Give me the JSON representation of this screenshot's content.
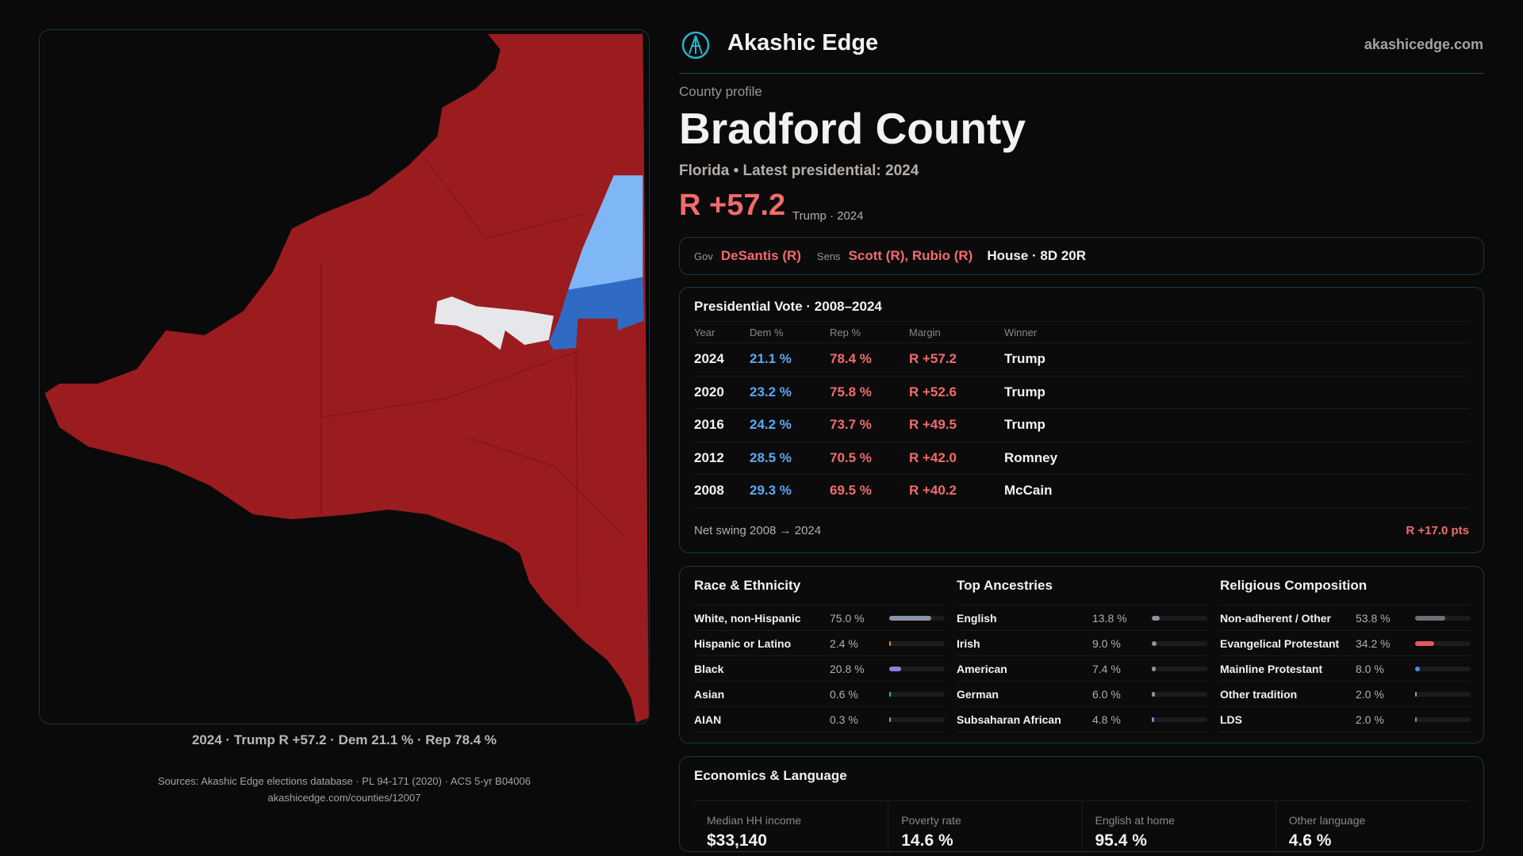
{
  "brand": {
    "name": "Akashic Edge",
    "domain": "akashicedge.com",
    "logo_icon": "compass-emblem-icon"
  },
  "profile": {
    "eyebrow": "County profile",
    "title": "Bradford County",
    "subtitle": "Florida • Latest presidential: 2024",
    "margin": "R +57.2",
    "margin_note": "Trump · 2024"
  },
  "officials": {
    "gov_label": "Gov",
    "gov": "DeSantis (R)",
    "sens_label": "Sens",
    "sens": "Scott (R), Rubio (R)",
    "house": "House · 8D 20R"
  },
  "map": {
    "caption": "2024 · Trump R +57.2 · Dem 21.1 % · Rep 78.4 %",
    "colors": {
      "rep": "#9b1c1f",
      "dem_light": "#7fb6f5",
      "dem": "#2f6bc5",
      "tossup": "#e6e7ea"
    }
  },
  "presidential": {
    "title": "Presidential Vote · 2008–2024",
    "headers": [
      "Year",
      "Dem %",
      "Rep %",
      "Margin",
      "Winner"
    ],
    "rows": [
      {
        "year": "2024",
        "dem": "21.1 %",
        "rep": "78.4 %",
        "margin": "R +57.2",
        "winner": "Trump"
      },
      {
        "year": "2020",
        "dem": "23.2 %",
        "rep": "75.8 %",
        "margin": "R +52.6",
        "winner": "Trump"
      },
      {
        "year": "2016",
        "dem": "24.2 %",
        "rep": "73.7 %",
        "margin": "R +49.5",
        "winner": "Trump"
      },
      {
        "year": "2012",
        "dem": "28.5 %",
        "rep": "70.5 %",
        "margin": "R +42.0",
        "winner": "Romney"
      },
      {
        "year": "2008",
        "dem": "29.3 %",
        "rep": "69.5 %",
        "margin": "R +40.2",
        "winner": "McCain"
      }
    ],
    "swing_label": "Net swing 2008 → 2024",
    "swing_value": "R +17.0 pts"
  },
  "demographics": [
    {
      "title": "Race & Ethnicity",
      "rows": [
        {
          "label": "White, non-Hispanic",
          "value": "75.0 %",
          "pct": 75.0,
          "color": "#8a93a6"
        },
        {
          "label": "Hispanic or Latino",
          "value": "2.4 %",
          "pct": 2.4,
          "color": "#e08a2a"
        },
        {
          "label": "Black",
          "value": "20.8 %",
          "pct": 20.8,
          "color": "#9a7ae0"
        },
        {
          "label": "Asian",
          "value": "0.6 %",
          "pct": 0.6,
          "color": "#2bbf8a"
        },
        {
          "label": "AIAN",
          "value": "0.3 %",
          "pct": 0.3,
          "color": "#e08a2a"
        }
      ]
    },
    {
      "title": "Top Ancestries",
      "rows": [
        {
          "label": "English",
          "value": "13.8 %",
          "pct": 13.8,
          "color": "#8a93a6"
        },
        {
          "label": "Irish",
          "value": "9.0 %",
          "pct": 9.0,
          "color": "#8a93a6"
        },
        {
          "label": "American",
          "value": "7.4 %",
          "pct": 7.4,
          "color": "#8a93a6"
        },
        {
          "label": "German",
          "value": "6.0 %",
          "pct": 6.0,
          "color": "#8a93a6"
        },
        {
          "label": "Subsaharan African",
          "value": "4.8 %",
          "pct": 4.8,
          "color": "#9a7ae0"
        }
      ]
    },
    {
      "title": "Religious Composition",
      "rows": [
        {
          "label": "Non-adherent / Other",
          "value": "53.8 %",
          "pct": 53.8,
          "color": "#6b6f78"
        },
        {
          "label": "Evangelical Protestant",
          "value": "34.2 %",
          "pct": 34.2,
          "color": "#e05a5f"
        },
        {
          "label": "Mainline Protestant",
          "value": "8.0 %",
          "pct": 8.0,
          "color": "#4a8fe0"
        },
        {
          "label": "Other tradition",
          "value": "2.0 %",
          "pct": 2.0,
          "color": "#9a9a9a"
        },
        {
          "label": "LDS",
          "value": "2.0 %",
          "pct": 2.0,
          "color": "#2bbfa8"
        }
      ]
    }
  ],
  "economics": {
    "title": "Economics & Language",
    "items": [
      {
        "label": "Median HH income",
        "value": "$33,140"
      },
      {
        "label": "Poverty rate",
        "value": "14.6 %"
      },
      {
        "label": "English at home",
        "value": "95.4 %"
      },
      {
        "label": "Other language",
        "value": "4.6 %"
      }
    ]
  },
  "sources": {
    "line1": "Sources: Akashic Edge elections database · PL 94-171 (2020) · ACS 5-yr B04006",
    "line2": "akashicedge.com/counties/12007"
  }
}
